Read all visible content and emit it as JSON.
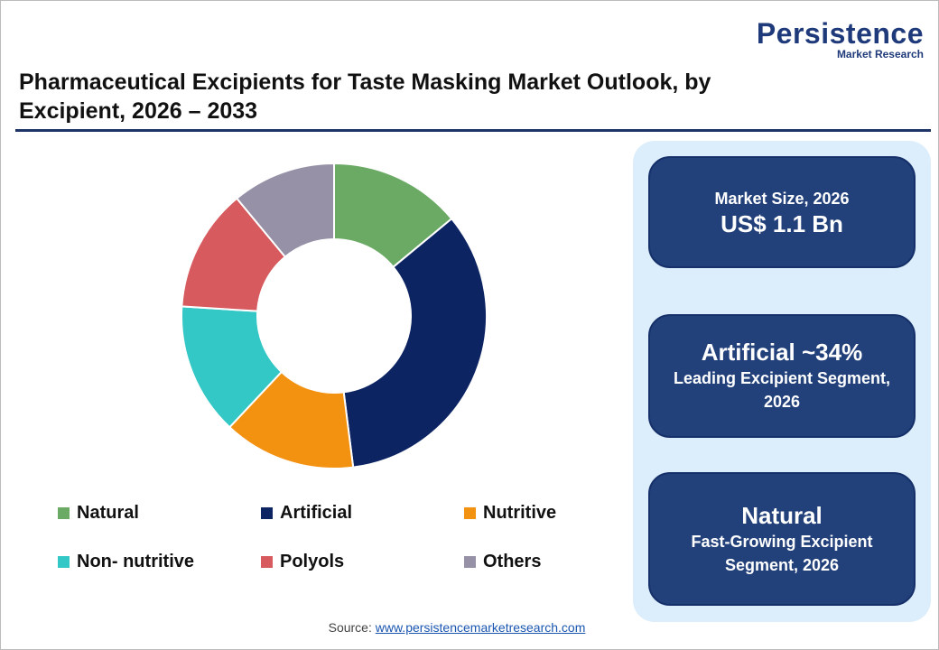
{
  "logo": {
    "name": "Persistence",
    "tagline": "Market Research"
  },
  "chart_data": {
    "type": "donut",
    "title": "Pharmaceutical Excipients for Taste Masking Market Outlook, by Excipient, 2026 – 2033",
    "categories": [
      "Natural",
      "Artificial",
      "Nutritive",
      "Non- nutritive",
      "Polyols",
      "Others"
    ],
    "values": [
      14,
      34,
      14,
      14,
      13,
      11
    ],
    "colors": [
      "#6aaa64",
      "#0d2463",
      "#f39110",
      "#33c7c5",
      "#d65a5e",
      "#9691a6"
    ]
  },
  "cards": [
    {
      "label": "Market Size, 2026",
      "value": "US$ 1.1 Bn"
    },
    {
      "value": "Artificial ~34%",
      "label": "Leading Excipient Segment, 2026"
    },
    {
      "value": "Natural",
      "label": "Fast-Growing Excipient Segment, 2026"
    }
  ],
  "source": {
    "label": "Source:",
    "link": "www.persistencemarketresearch.com"
  }
}
